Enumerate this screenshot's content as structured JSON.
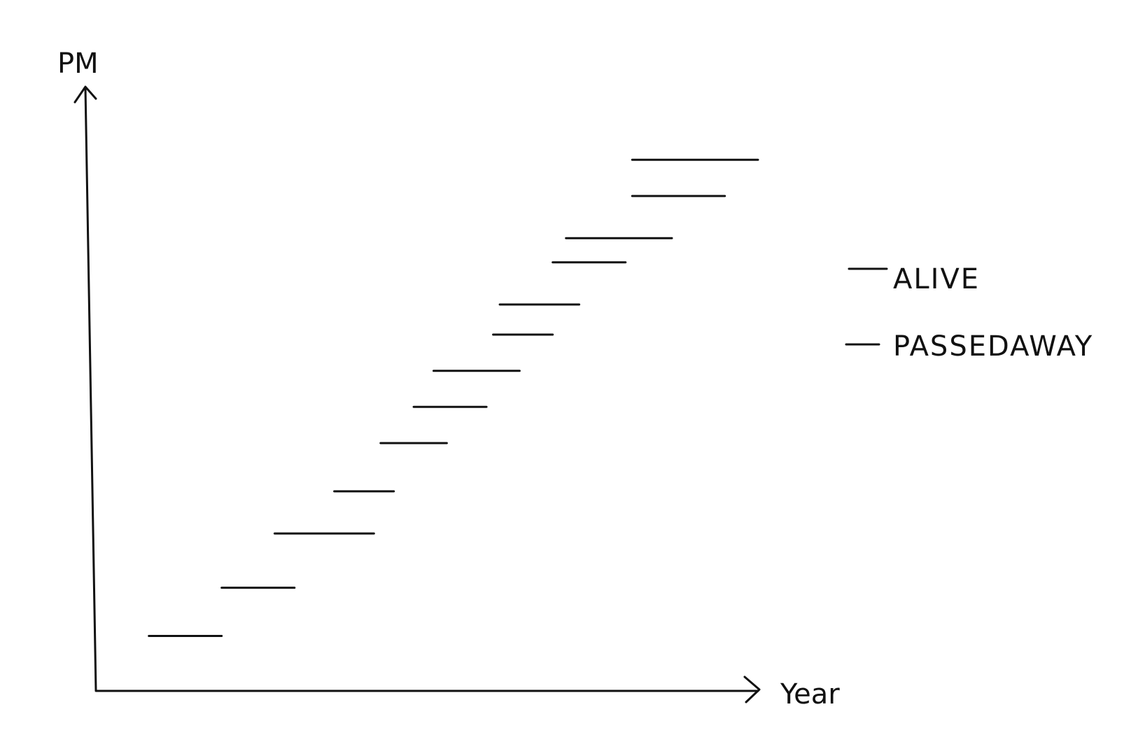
{
  "chart_data": {
    "type": "line",
    "xlabel": "Year",
    "ylabel": "PM",
    "title": "",
    "legend": {
      "placement": "right",
      "entries": [
        "ALIVE",
        "PASSEDAWAY"
      ]
    },
    "grid": false,
    "segments": [
      {
        "start": 0.08,
        "end": 0.19,
        "value": 0.09
      },
      {
        "start": 0.19,
        "end": 0.3,
        "value": 0.17
      },
      {
        "start": 0.27,
        "end": 0.42,
        "value": 0.26
      },
      {
        "start": 0.36,
        "end": 0.45,
        "value": 0.33
      },
      {
        "start": 0.43,
        "end": 0.53,
        "value": 0.41
      },
      {
        "start": 0.48,
        "end": 0.59,
        "value": 0.47
      },
      {
        "start": 0.51,
        "end": 0.64,
        "value": 0.53
      },
      {
        "start": 0.6,
        "end": 0.69,
        "value": 0.59
      },
      {
        "start": 0.61,
        "end": 0.73,
        "value": 0.64
      },
      {
        "start": 0.69,
        "end": 0.8,
        "value": 0.71
      },
      {
        "start": 0.71,
        "end": 0.87,
        "value": 0.75
      },
      {
        "start": 0.81,
        "end": 0.95,
        "value": 0.82
      },
      {
        "start": 0.81,
        "end": 1.0,
        "value": 0.88
      }
    ],
    "xlim": [
      0,
      1
    ],
    "ylim": [
      0,
      1
    ],
    "colors": {
      "line": "#111111",
      "background": "#ffffff"
    }
  }
}
